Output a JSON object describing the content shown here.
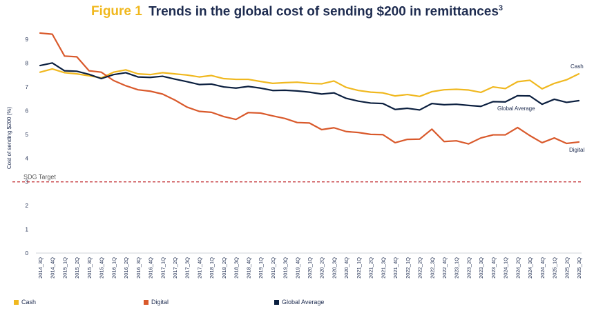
{
  "title": {
    "figure_label": "Figure 1",
    "text": "Trends in the global cost of sending $200 in remittances",
    "superscript": "3"
  },
  "chart_data": {
    "type": "line",
    "ylabel": "Cost of sending $200 (%)",
    "ylim": [
      0,
      9.5
    ],
    "yticks": [
      0,
      1,
      2,
      3,
      4,
      5,
      6,
      7,
      8,
      9
    ],
    "categories": [
      "2014_3Q",
      "2014_4Q",
      "2015_1Q",
      "2015_2Q",
      "2015_3Q",
      "2015_4Q",
      "2016_1Q",
      "2016_2Q",
      "2016_3Q",
      "2016_4Q",
      "2017_1Q",
      "2017_2Q",
      "2017_3Q",
      "2017_4Q",
      "2018_1Q",
      "2018_2Q",
      "2018_3Q",
      "2018_4Q",
      "2019_1Q",
      "2019_2Q",
      "2019_3Q",
      "2019_4Q",
      "2020_1Q",
      "2020_2Q",
      "2020_3Q",
      "2020_4Q",
      "2021_1Q",
      "2021_2Q",
      "2021_3Q",
      "2021_4Q",
      "2022_1Q",
      "2022_2Q",
      "2022_3Q",
      "2022_4Q",
      "2023_1Q",
      "2023_2Q",
      "2023_3Q",
      "2023_4Q",
      "2024_1Q",
      "2024_2Q",
      "2024_3Q",
      "2024_4Q",
      "2025_1Q",
      "2025_2Q",
      "2025_3Q"
    ],
    "series": [
      {
        "name": "Cash",
        "color": "#f0b81f",
        "end_label": "Cash",
        "values": [
          7.62,
          7.76,
          7.6,
          7.55,
          7.47,
          7.38,
          7.62,
          7.72,
          7.55,
          7.52,
          7.6,
          7.55,
          7.5,
          7.42,
          7.48,
          7.35,
          7.32,
          7.32,
          7.23,
          7.15,
          7.18,
          7.2,
          7.15,
          7.13,
          7.25,
          6.98,
          6.85,
          6.78,
          6.75,
          6.62,
          6.68,
          6.6,
          6.8,
          6.88,
          6.9,
          6.87,
          6.77,
          7.0,
          6.93,
          7.22,
          7.28,
          6.92,
          7.15,
          7.3,
          7.55
        ]
      },
      {
        "name": "Digital",
        "color": "#d9592b",
        "end_label": "Digital",
        "values": [
          9.27,
          9.22,
          8.3,
          8.27,
          7.68,
          7.62,
          7.27,
          7.05,
          6.88,
          6.82,
          6.7,
          6.45,
          6.15,
          5.97,
          5.93,
          5.75,
          5.63,
          5.92,
          5.9,
          5.78,
          5.67,
          5.5,
          5.48,
          5.2,
          5.28,
          5.12,
          5.08,
          5.0,
          4.99,
          4.65,
          4.79,
          4.8,
          5.22,
          4.7,
          4.73,
          4.6,
          4.85,
          4.98,
          4.98,
          5.29,
          4.95,
          4.65,
          4.85,
          4.62,
          4.68
        ]
      },
      {
        "name": "Global Average",
        "color": "#0b1f3f",
        "end_label": "Global Average",
        "values": [
          7.9,
          8.01,
          7.68,
          7.66,
          7.53,
          7.35,
          7.52,
          7.6,
          7.42,
          7.4,
          7.45,
          7.33,
          7.22,
          7.1,
          7.12,
          7.0,
          6.95,
          7.02,
          6.95,
          6.85,
          6.86,
          6.83,
          6.78,
          6.7,
          6.75,
          6.52,
          6.4,
          6.32,
          6.3,
          6.05,
          6.1,
          6.03,
          6.3,
          6.25,
          6.27,
          6.22,
          6.18,
          6.38,
          6.37,
          6.63,
          6.62,
          6.27,
          6.48,
          6.35,
          6.42
        ]
      }
    ],
    "reference_line": {
      "value": 3,
      "label": "SDG Target",
      "color": "#c0272d"
    },
    "legend": {
      "placement": "bottom",
      "items": [
        "Cash",
        "Digital",
        "Global Average"
      ]
    }
  }
}
